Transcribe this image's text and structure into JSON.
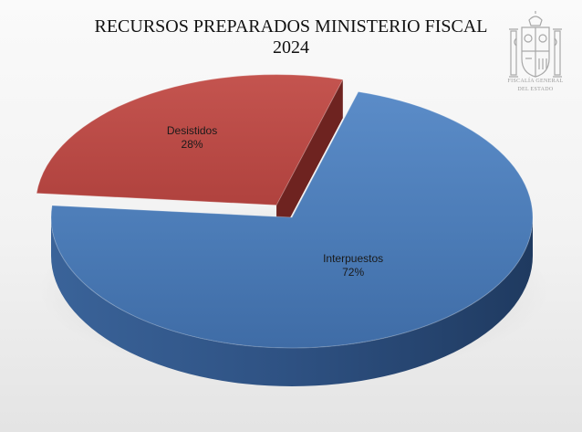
{
  "chart_data": {
    "type": "pie",
    "title": "RECURSOS PREPARADOS MINISTERIO FISCAL",
    "subtitle": "2024",
    "slices": [
      {
        "label": "Interpuestos",
        "value": 72,
        "value_label": "72%",
        "color": "#4a7ab5"
      },
      {
        "label": "Desistidos",
        "value": 28,
        "value_label": "28%",
        "color": "#b84a47"
      }
    ],
    "three_d": true,
    "exploded": true,
    "legend": "none"
  },
  "logo": {
    "name": "fiscalia-general-coat-of-arms",
    "text_line1": "FISCALÍA GENERAL",
    "text_line2": "DEL ESTADO"
  }
}
